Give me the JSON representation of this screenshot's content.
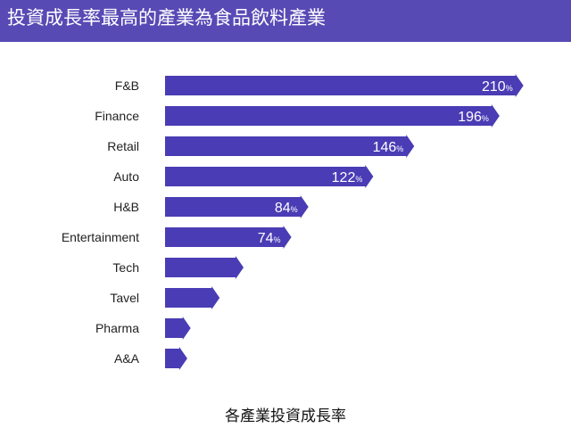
{
  "header": {
    "title": "投資成長率最高的產業為食品飲料產業"
  },
  "colors": {
    "header_bg": "#574ab5",
    "bar": "#4a3cb4",
    "value_text": "#ffffff"
  },
  "chart_data": {
    "type": "bar",
    "orientation": "horizontal",
    "bar_shape": "arrow",
    "title": "各產業投資成長率",
    "categories": [
      "F&B",
      "Finance",
      "Retail",
      "Auto",
      "H&B",
      "Entertainment",
      "Tech",
      "Tavel",
      "Pharma",
      "A&A"
    ],
    "values": [
      210,
      196,
      146,
      122,
      84,
      74,
      46,
      32,
      15,
      13
    ],
    "value_labels": [
      "210",
      "196",
      "146",
      "122",
      "84",
      "74",
      "",
      "",
      "",
      ""
    ],
    "unit": "%",
    "xlim": [
      0,
      220
    ],
    "grid": false,
    "legend": "none"
  }
}
